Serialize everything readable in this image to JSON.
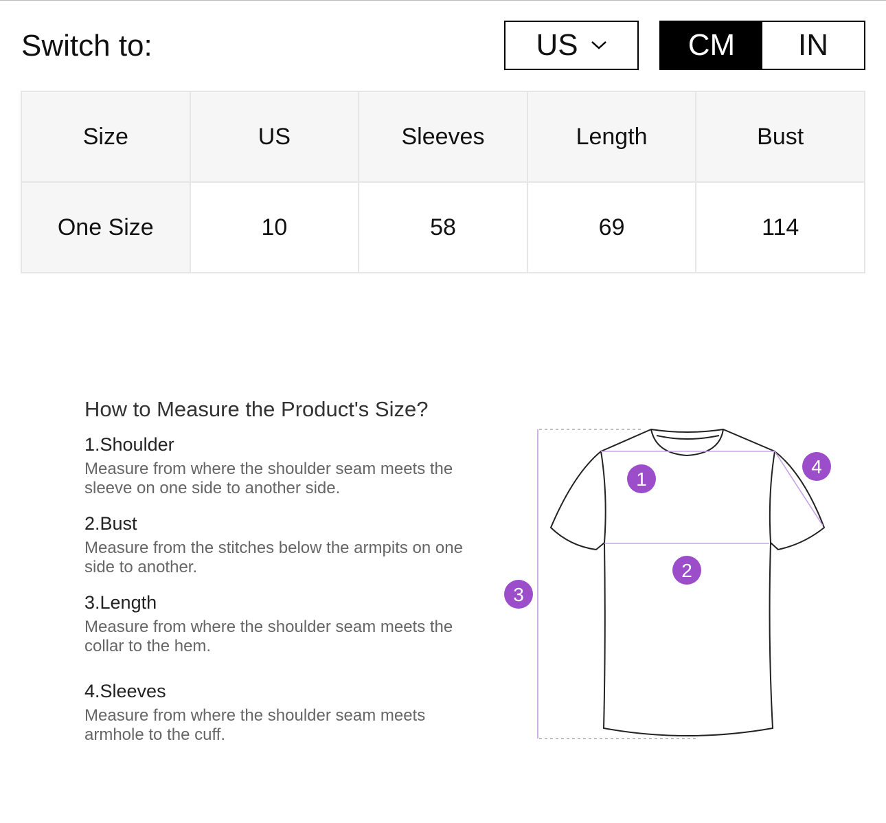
{
  "header": {
    "switch_label": "Switch to:",
    "region": "US",
    "region_icon": "chevron-down-icon",
    "units": [
      "CM",
      "IN"
    ],
    "active_unit": "CM"
  },
  "table": {
    "headers": [
      "Size",
      "US",
      "Sleeves",
      "Length",
      "Bust"
    ],
    "rows": [
      [
        "One Size",
        "10",
        "58",
        "69",
        "114"
      ]
    ]
  },
  "howto": {
    "title": "How to Measure the Product's Size?",
    "items": [
      {
        "title": "1.Shoulder",
        "desc": "Measure from where the shoulder seam meets the sleeve on one side to another side."
      },
      {
        "title": "2.Bust",
        "desc": "Measure from the stitches below the armpits on one side to another."
      },
      {
        "title": "3.Length",
        "desc": "Measure from where the shoulder seam meets the collar to the hem."
      },
      {
        "title": "4.Sleeves",
        "desc": "Measure from where the shoulder seam meets armhole to the cuff."
      }
    ]
  },
  "diagram": {
    "markers": [
      "1",
      "2",
      "3",
      "4"
    ],
    "accent": "#9b4dca"
  }
}
